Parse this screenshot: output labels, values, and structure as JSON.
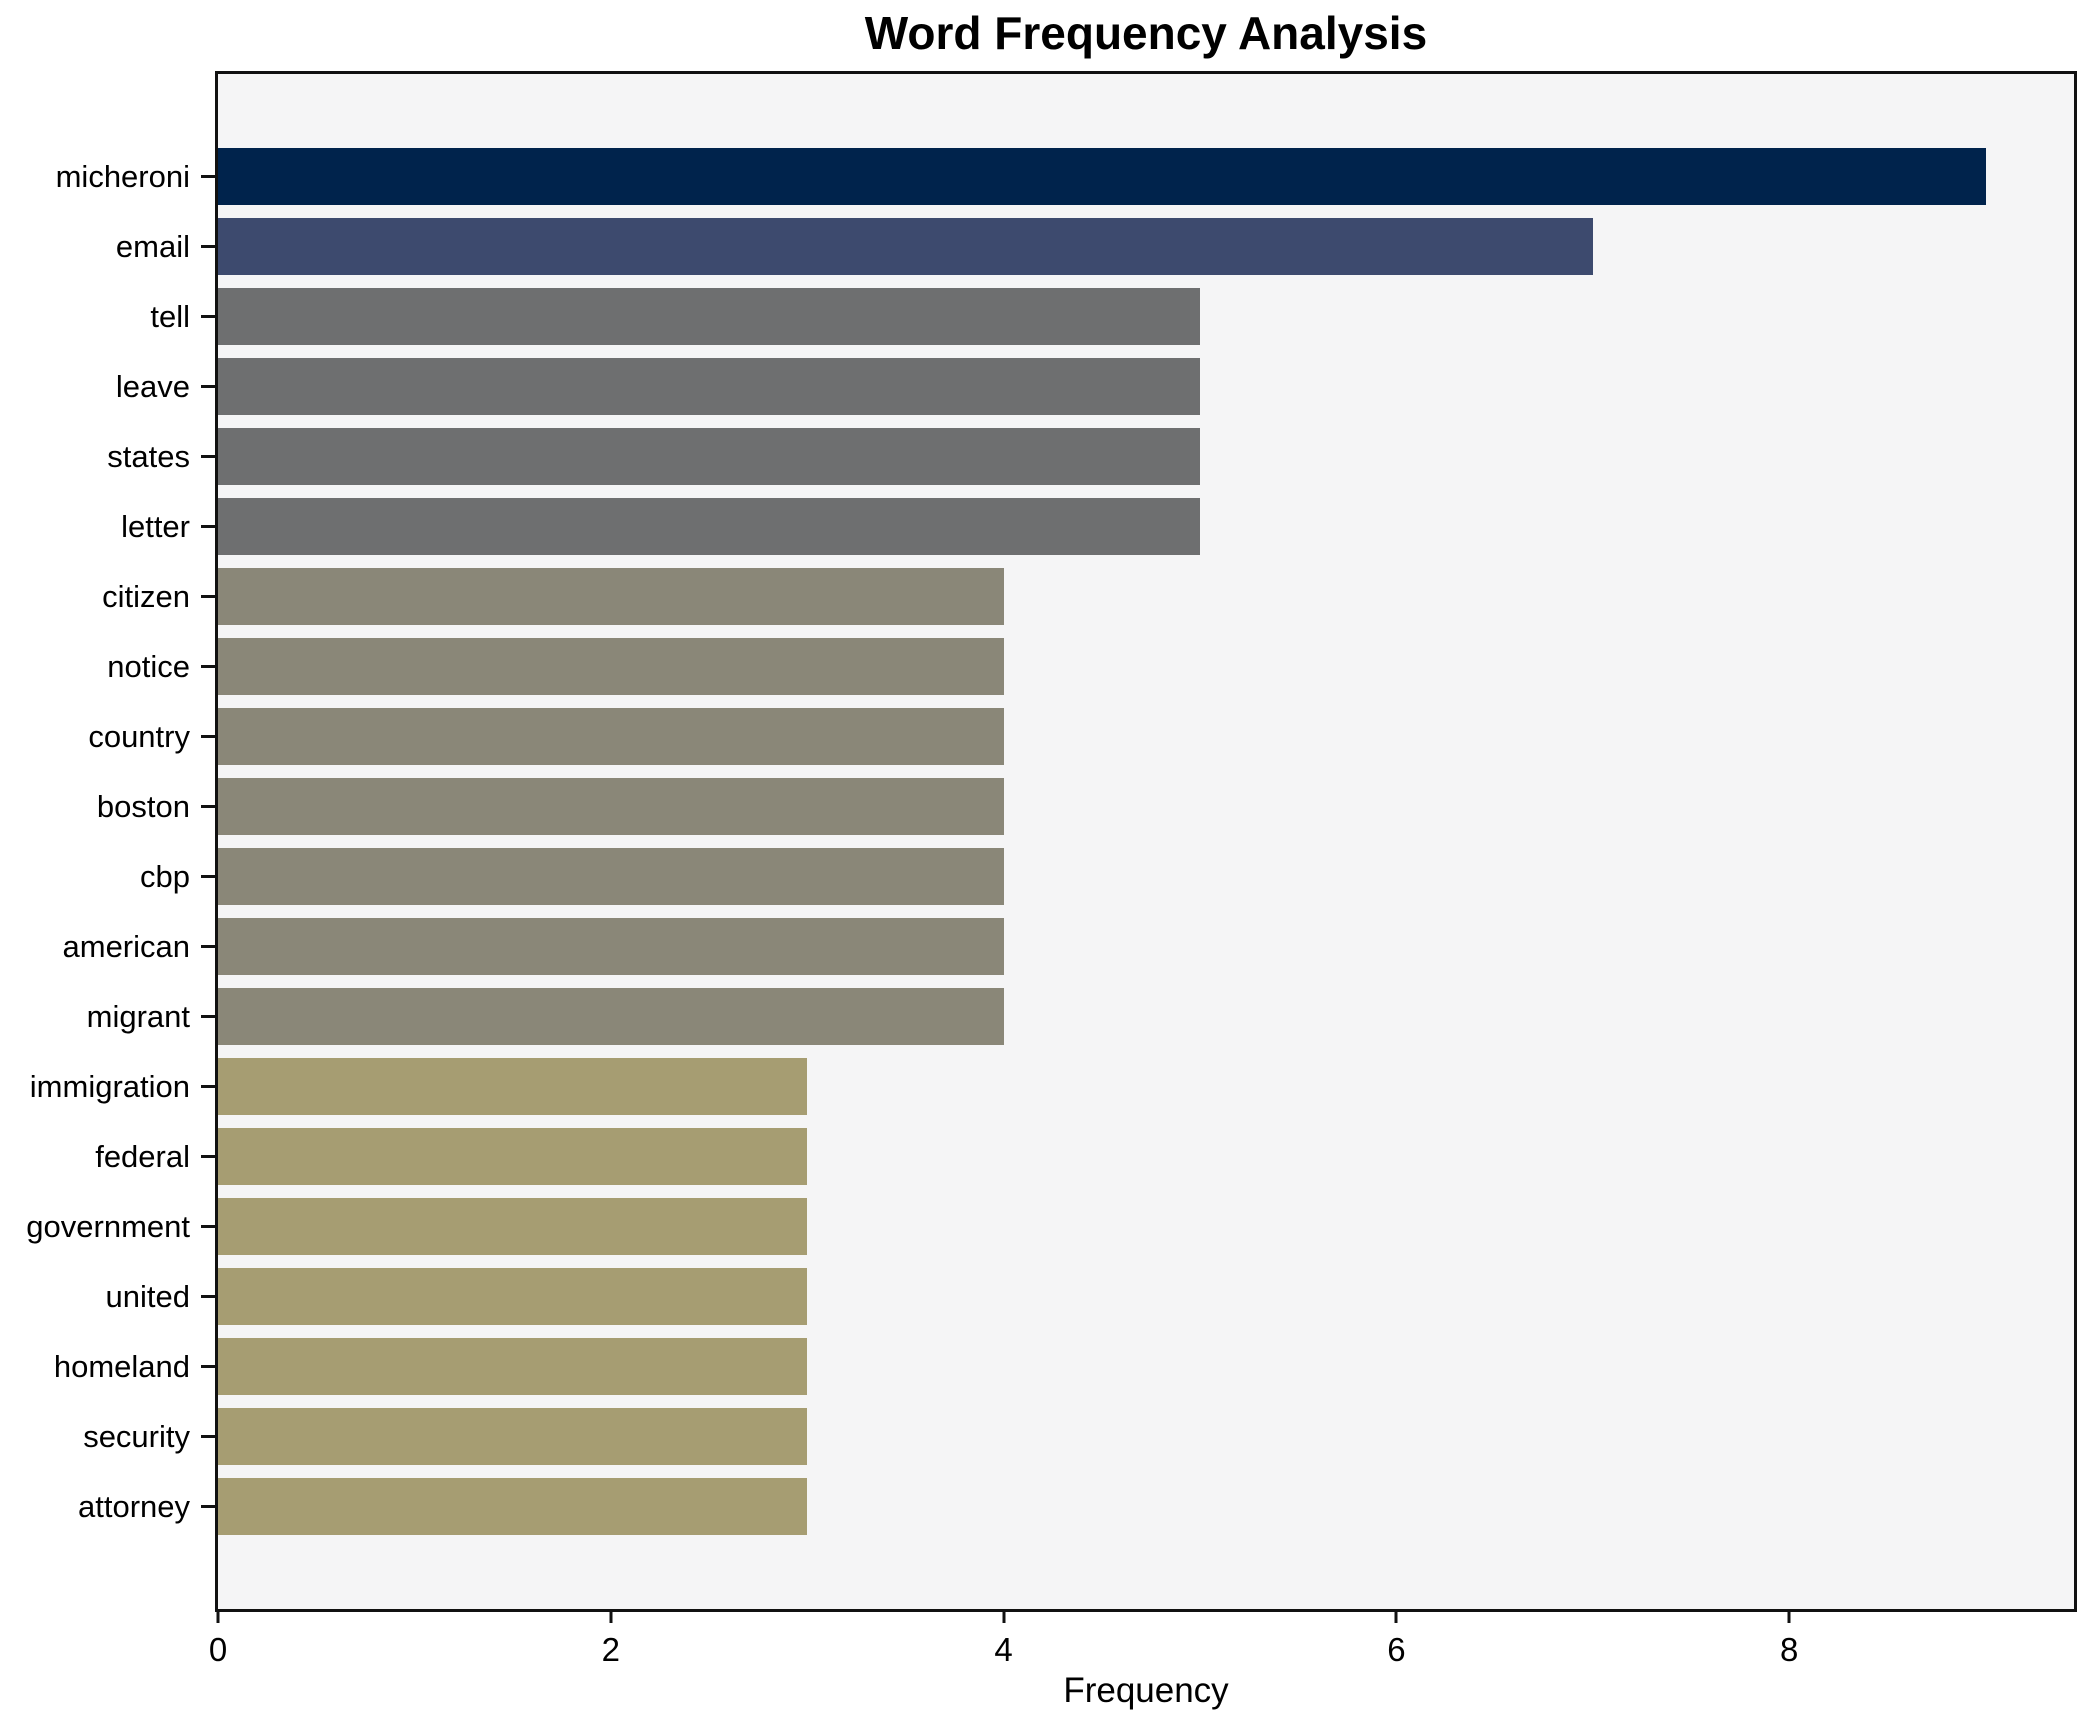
{
  "chart_data": {
    "type": "bar",
    "orientation": "horizontal",
    "title": "Word Frequency Analysis",
    "xlabel": "Frequency",
    "ylabel": "",
    "xlim": [
      0,
      9.45
    ],
    "xticks": [
      0,
      2,
      4,
      6,
      8
    ],
    "grid": false,
    "legend": "none",
    "plot_background": "#f5f5f6",
    "axis_color": "#111111",
    "categories": [
      "micheroni",
      "email",
      "tell",
      "leave",
      "states",
      "letter",
      "citizen",
      "notice",
      "country",
      "boston",
      "cbp",
      "american",
      "migrant",
      "immigration",
      "federal",
      "government",
      "united",
      "homeland",
      "security",
      "attorney"
    ],
    "values": [
      9,
      7,
      5,
      5,
      5,
      5,
      4,
      4,
      4,
      4,
      4,
      4,
      4,
      3,
      3,
      3,
      3,
      3,
      3,
      3
    ],
    "bar_colors": [
      "#00234c",
      "#3d4a6e",
      "#6e6f70",
      "#6e6f70",
      "#6e6f70",
      "#6e6f70",
      "#8a8778",
      "#8a8778",
      "#8a8778",
      "#8a8778",
      "#8a8778",
      "#8a8778",
      "#8a8778",
      "#a69d72",
      "#a69d72",
      "#a69d72",
      "#a69d72",
      "#a69d72",
      "#a69d72",
      "#a69d72"
    ]
  }
}
